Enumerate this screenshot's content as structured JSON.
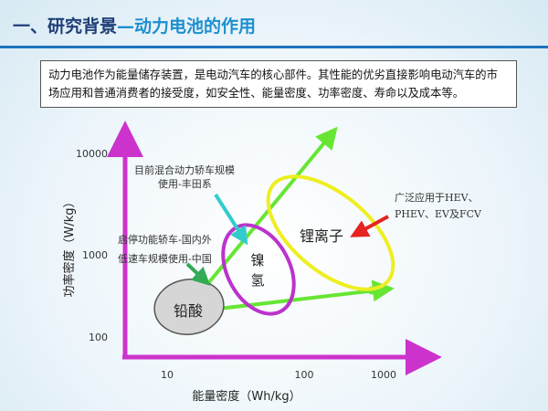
{
  "header": {
    "title_main": "一、研究背景",
    "title_sub": "—动力电池的作用"
  },
  "description": "动力电池作为能量储存装置，是电动汽车的核心部件。其性能的优劣直接影响电动汽车的市场应用和普通消费者的接受度，如安全性、能量密度、功率密度、寿命以及成本等。",
  "diagram": {
    "y_axis_label": "功率密度（W/kg）",
    "x_axis_label": "能量密度（Wh/kg）",
    "y_ticks": [
      "10000",
      "1000",
      "100"
    ],
    "x_ticks": [
      "10",
      "100",
      "1000"
    ],
    "regions": {
      "lead_acid": "铅酸",
      "nimh_line1": "镍",
      "nimh_line2": "氢",
      "li_ion": "锂离子"
    },
    "annotations": {
      "hybrid_line1": "目前混合动力轿车规模",
      "hybrid_line2": "使用-丰田系",
      "startstop_line1": "启停功能轿车-国内外",
      "startstop_line2": "低速车规模使用-中国",
      "li_line1": "广泛应用于HEV、",
      "li_line2": "PHEV、EV及FCV"
    },
    "colors": {
      "axis": "#cc33cc",
      "green_arrow": "#66e633",
      "nimh": "#bb33cc",
      "li_ion": "#eeee22",
      "lead_fill": "#d6d6d6",
      "red_arrow": "#e62222",
      "cyan_arrow": "#33cccc"
    }
  }
}
